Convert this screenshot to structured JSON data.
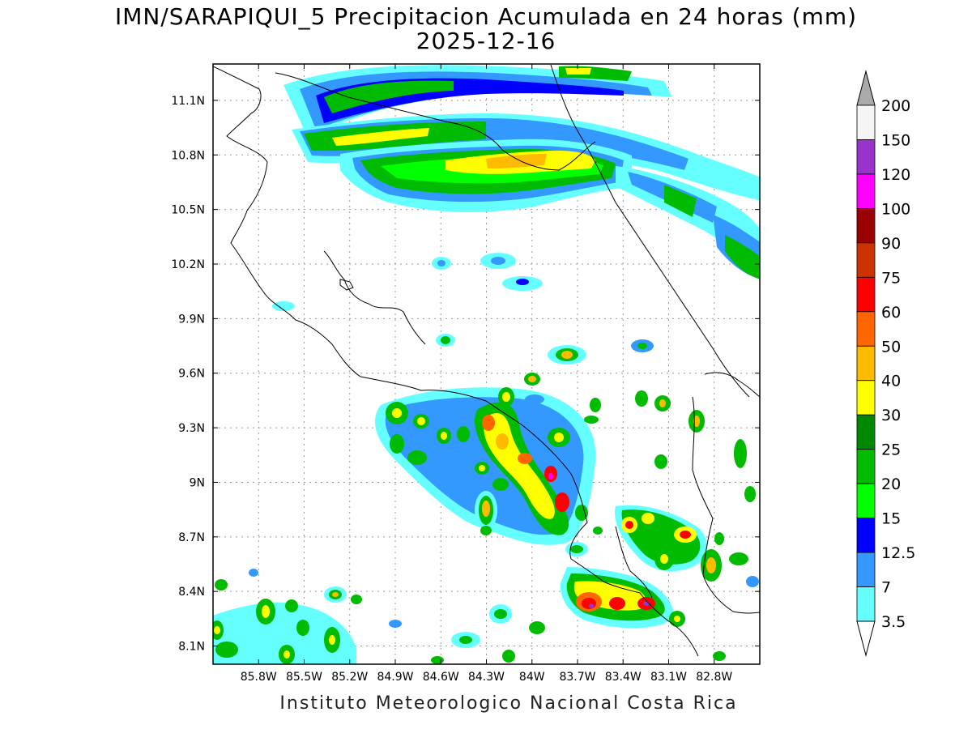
{
  "title": {
    "line1": "IMN/SARAPIQUI_5 Precipitacion Acumulada en 24 horas (mm)",
    "line2": "2025-12-16"
  },
  "footer": "Instituto Meteorologico Nacional Costa Rica",
  "axes": {
    "lon_ticks": [
      "85.8W",
      "85.5W",
      "85.2W",
      "84.9W",
      "84.6W",
      "84.3W",
      "84W",
      "83.7W",
      "83.4W",
      "83.1W",
      "82.8W"
    ],
    "lat_ticks": [
      "11.1N",
      "10.8N",
      "10.5N",
      "10.2N",
      "9.9N",
      "9.6N",
      "9.3N",
      "9N",
      "8.7N",
      "8.4N",
      "8.1N"
    ],
    "lon_range": [
      -86.1,
      -82.5
    ],
    "lat_range": [
      8.0,
      11.3
    ],
    "grid": true
  },
  "colorbar": {
    "levels": [
      "200",
      "150",
      "120",
      "100",
      "90",
      "75",
      "60",
      "50",
      "40",
      "30",
      "25",
      "20",
      "15",
      "12.5",
      "7",
      "3.5"
    ],
    "colors": [
      "#aaaaaa",
      "#f5f5f5",
      "#9933cc",
      "#ff00ff",
      "#990000",
      "#cc3300",
      "#ff0000",
      "#ff6600",
      "#ffbb00",
      "#ffff00",
      "#008800",
      "#00bb00",
      "#00ff00",
      "#0000ff",
      "#3399ff",
      "#66ffff"
    ]
  }
}
